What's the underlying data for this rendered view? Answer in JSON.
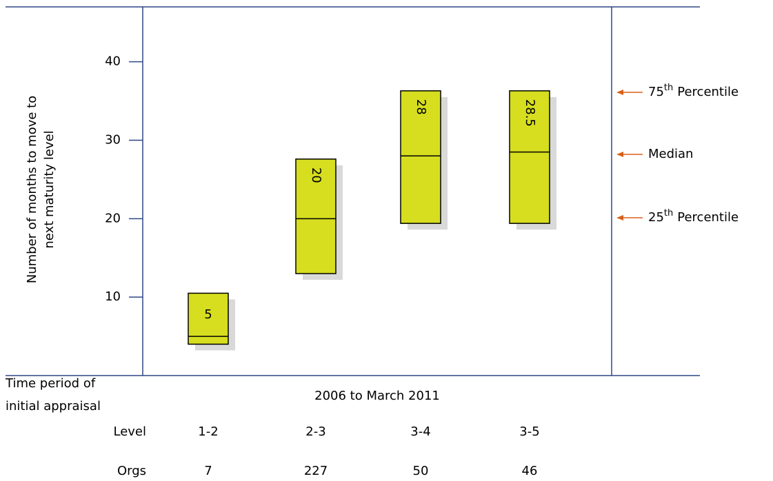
{
  "chart_data": {
    "type": "box",
    "ylabel": [
      "Number of months to move to",
      "next maturity level"
    ],
    "ylim": [
      0,
      47
    ],
    "yticks": [
      10,
      20,
      30,
      40
    ],
    "categories": [
      "1-2",
      "2-3",
      "3-4",
      "3-5"
    ],
    "category_label": "Level",
    "q1": [
      4,
      13,
      19.4,
      19.4
    ],
    "median": [
      5,
      20,
      28,
      28.5
    ],
    "q3": [
      10.5,
      27.6,
      36.3,
      36.3
    ],
    "color": "#d6de1f",
    "shadow_color": "#d9d9d9",
    "period_label": [
      "Time period of",
      "initial appraisal"
    ],
    "period": "2006 to March 2011",
    "orgs": {
      "label": "Orgs",
      "values": [
        7,
        227,
        50,
        46
      ]
    },
    "annotations": [
      {
        "base": "75",
        "sup": "th",
        "text": "Percentile"
      },
      {
        "text": "Median"
      },
      {
        "base": "25",
        "sup": "th",
        "text": "Percentile"
      }
    ],
    "annotation_color": "#d86018"
  }
}
